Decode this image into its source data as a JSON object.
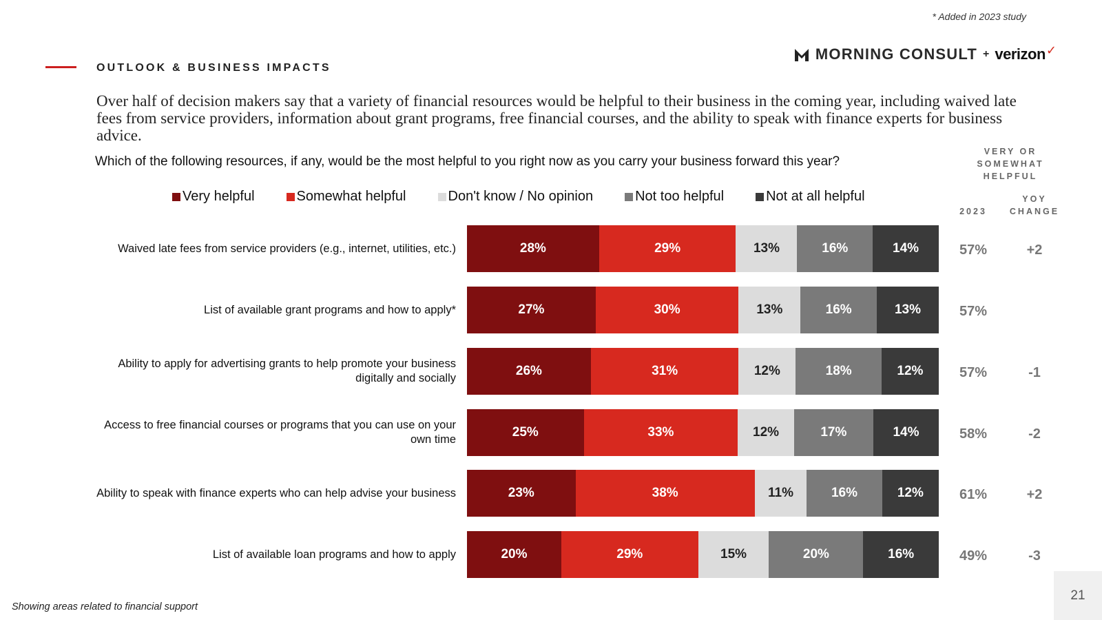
{
  "footnote_top": "* Added in 2023 study",
  "brand": {
    "morning_consult": "MORNING CONSULT",
    "plus": "+",
    "partner": "verizon"
  },
  "section_title": "OUTLOOK & BUSINESS IMPACTS",
  "headline": "Over half of decision makers say that a variety of financial resources would be helpful to their business in the coming year, including waived late fees from service providers, information about grant programs, free financial courses, and the ability to speak with finance experts for business advice.",
  "question": "Which of the following resources, if any, would be the most helpful to you right now as you carry your business forward this year?",
  "column_headers": {
    "group": "VERY OR SOMEWHAT HELPFUL",
    "year": "2023",
    "change": "YOY CHANGE"
  },
  "footnote_bottom": "Showing areas related to financial support",
  "page_number": "21",
  "colors": {
    "very": "#7f0f10",
    "somewhat": "#d7291f",
    "dontknow": "#dcdcdc",
    "nottoo": "#7a7a7a",
    "notatall": "#3a3a3a",
    "accent": "#cc1f1f"
  },
  "chart_data": {
    "type": "bar",
    "orientation": "horizontal",
    "stacked": true,
    "title": "Which of the following resources, if any, would be the most helpful to you right now as you carry your business forward this year?",
    "legend_position": "top",
    "series_names": [
      "Very helpful",
      "Somewhat helpful",
      "Don't know / No opinion",
      "Not too helpful",
      "Not at all helpful"
    ],
    "categories": [
      "Waived late fees from service providers (e.g., internet, utilities, etc.)",
      "List of available grant programs and how to apply*",
      "Ability to apply for advertising grants to help promote your business digitally and socially",
      "Access to free financial courses or programs that you can use on your own time",
      "Ability to speak with finance experts who can help advise your business",
      "List of available loan programs and how to apply"
    ],
    "values": [
      [
        28,
        29,
        13,
        16,
        14
      ],
      [
        27,
        30,
        13,
        16,
        13
      ],
      [
        26,
        31,
        12,
        18,
        12
      ],
      [
        25,
        33,
        12,
        17,
        14
      ],
      [
        23,
        38,
        11,
        16,
        12
      ],
      [
        20,
        29,
        15,
        20,
        16
      ]
    ],
    "very_or_somewhat_2023": [
      "57%",
      "57%",
      "57%",
      "58%",
      "61%",
      "49%"
    ],
    "yoy_change": [
      "+2",
      "",
      "-1",
      "-2",
      "+2",
      "-3"
    ]
  }
}
